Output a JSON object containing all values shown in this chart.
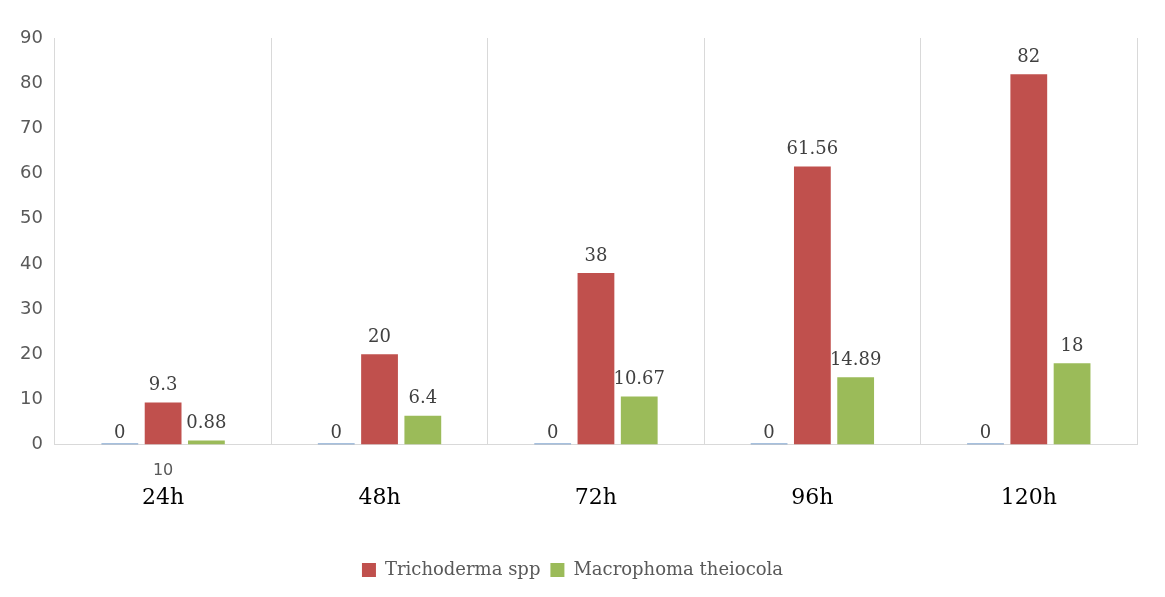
{
  "chart_data": {
    "type": "bar",
    "categories": [
      "24h",
      "48h",
      "72h",
      "96h",
      "120h"
    ],
    "series": [
      {
        "color": "#4f81bd",
        "values": [
          0,
          0,
          0,
          0,
          0
        ]
      },
      {
        "name": "Trichoderma spp",
        "color": "#c0504d",
        "values": [
          9.3,
          20,
          38,
          61.56,
          82
        ]
      },
      {
        "name": "Macrophoma theiocola",
        "color": "#9bbb59",
        "values": [
          0.88,
          6.4,
          10.67,
          14.89,
          18
        ]
      }
    ],
    "ylim": [
      0,
      90
    ],
    "yticks": [
      0,
      10,
      20,
      30,
      40,
      50,
      60,
      70,
      80,
      90
    ],
    "grid": "x",
    "legend": "bottom",
    "data_labels": true,
    "annotations": [
      "10"
    ]
  }
}
